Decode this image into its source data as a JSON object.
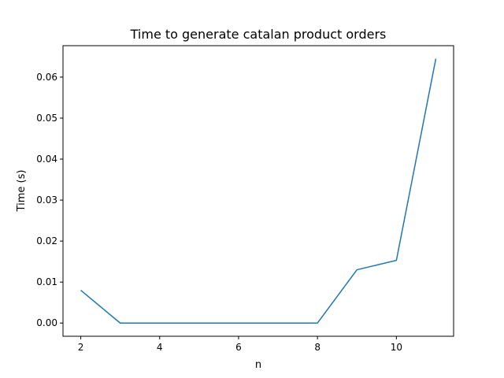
{
  "chart_data": {
    "type": "line",
    "title": "Time to generate catalan product orders",
    "xlabel": "n",
    "ylabel": "Time (s)",
    "xlim": [
      1.55,
      11.45
    ],
    "ylim": [
      -0.00322,
      0.06767
    ],
    "xticks": [
      2,
      4,
      6,
      8,
      10
    ],
    "xtick_labels": [
      "2",
      "4",
      "6",
      "8",
      "10"
    ],
    "yticks": [
      0.0,
      0.01,
      0.02,
      0.03,
      0.04,
      0.05,
      0.06
    ],
    "ytick_labels": [
      "0.00",
      "0.01",
      "0.02",
      "0.03",
      "0.04",
      "0.05",
      "0.06"
    ],
    "grid": false,
    "legend": "none",
    "series": [
      {
        "color": "#1f77b4",
        "x": [
          2,
          3,
          4,
          5,
          6,
          7,
          8,
          9,
          10,
          11
        ],
        "y": [
          0.008,
          0.0,
          0.0,
          0.0,
          0.0,
          0.0,
          0.0,
          0.013,
          0.0153,
          0.0645
        ]
      }
    ]
  }
}
